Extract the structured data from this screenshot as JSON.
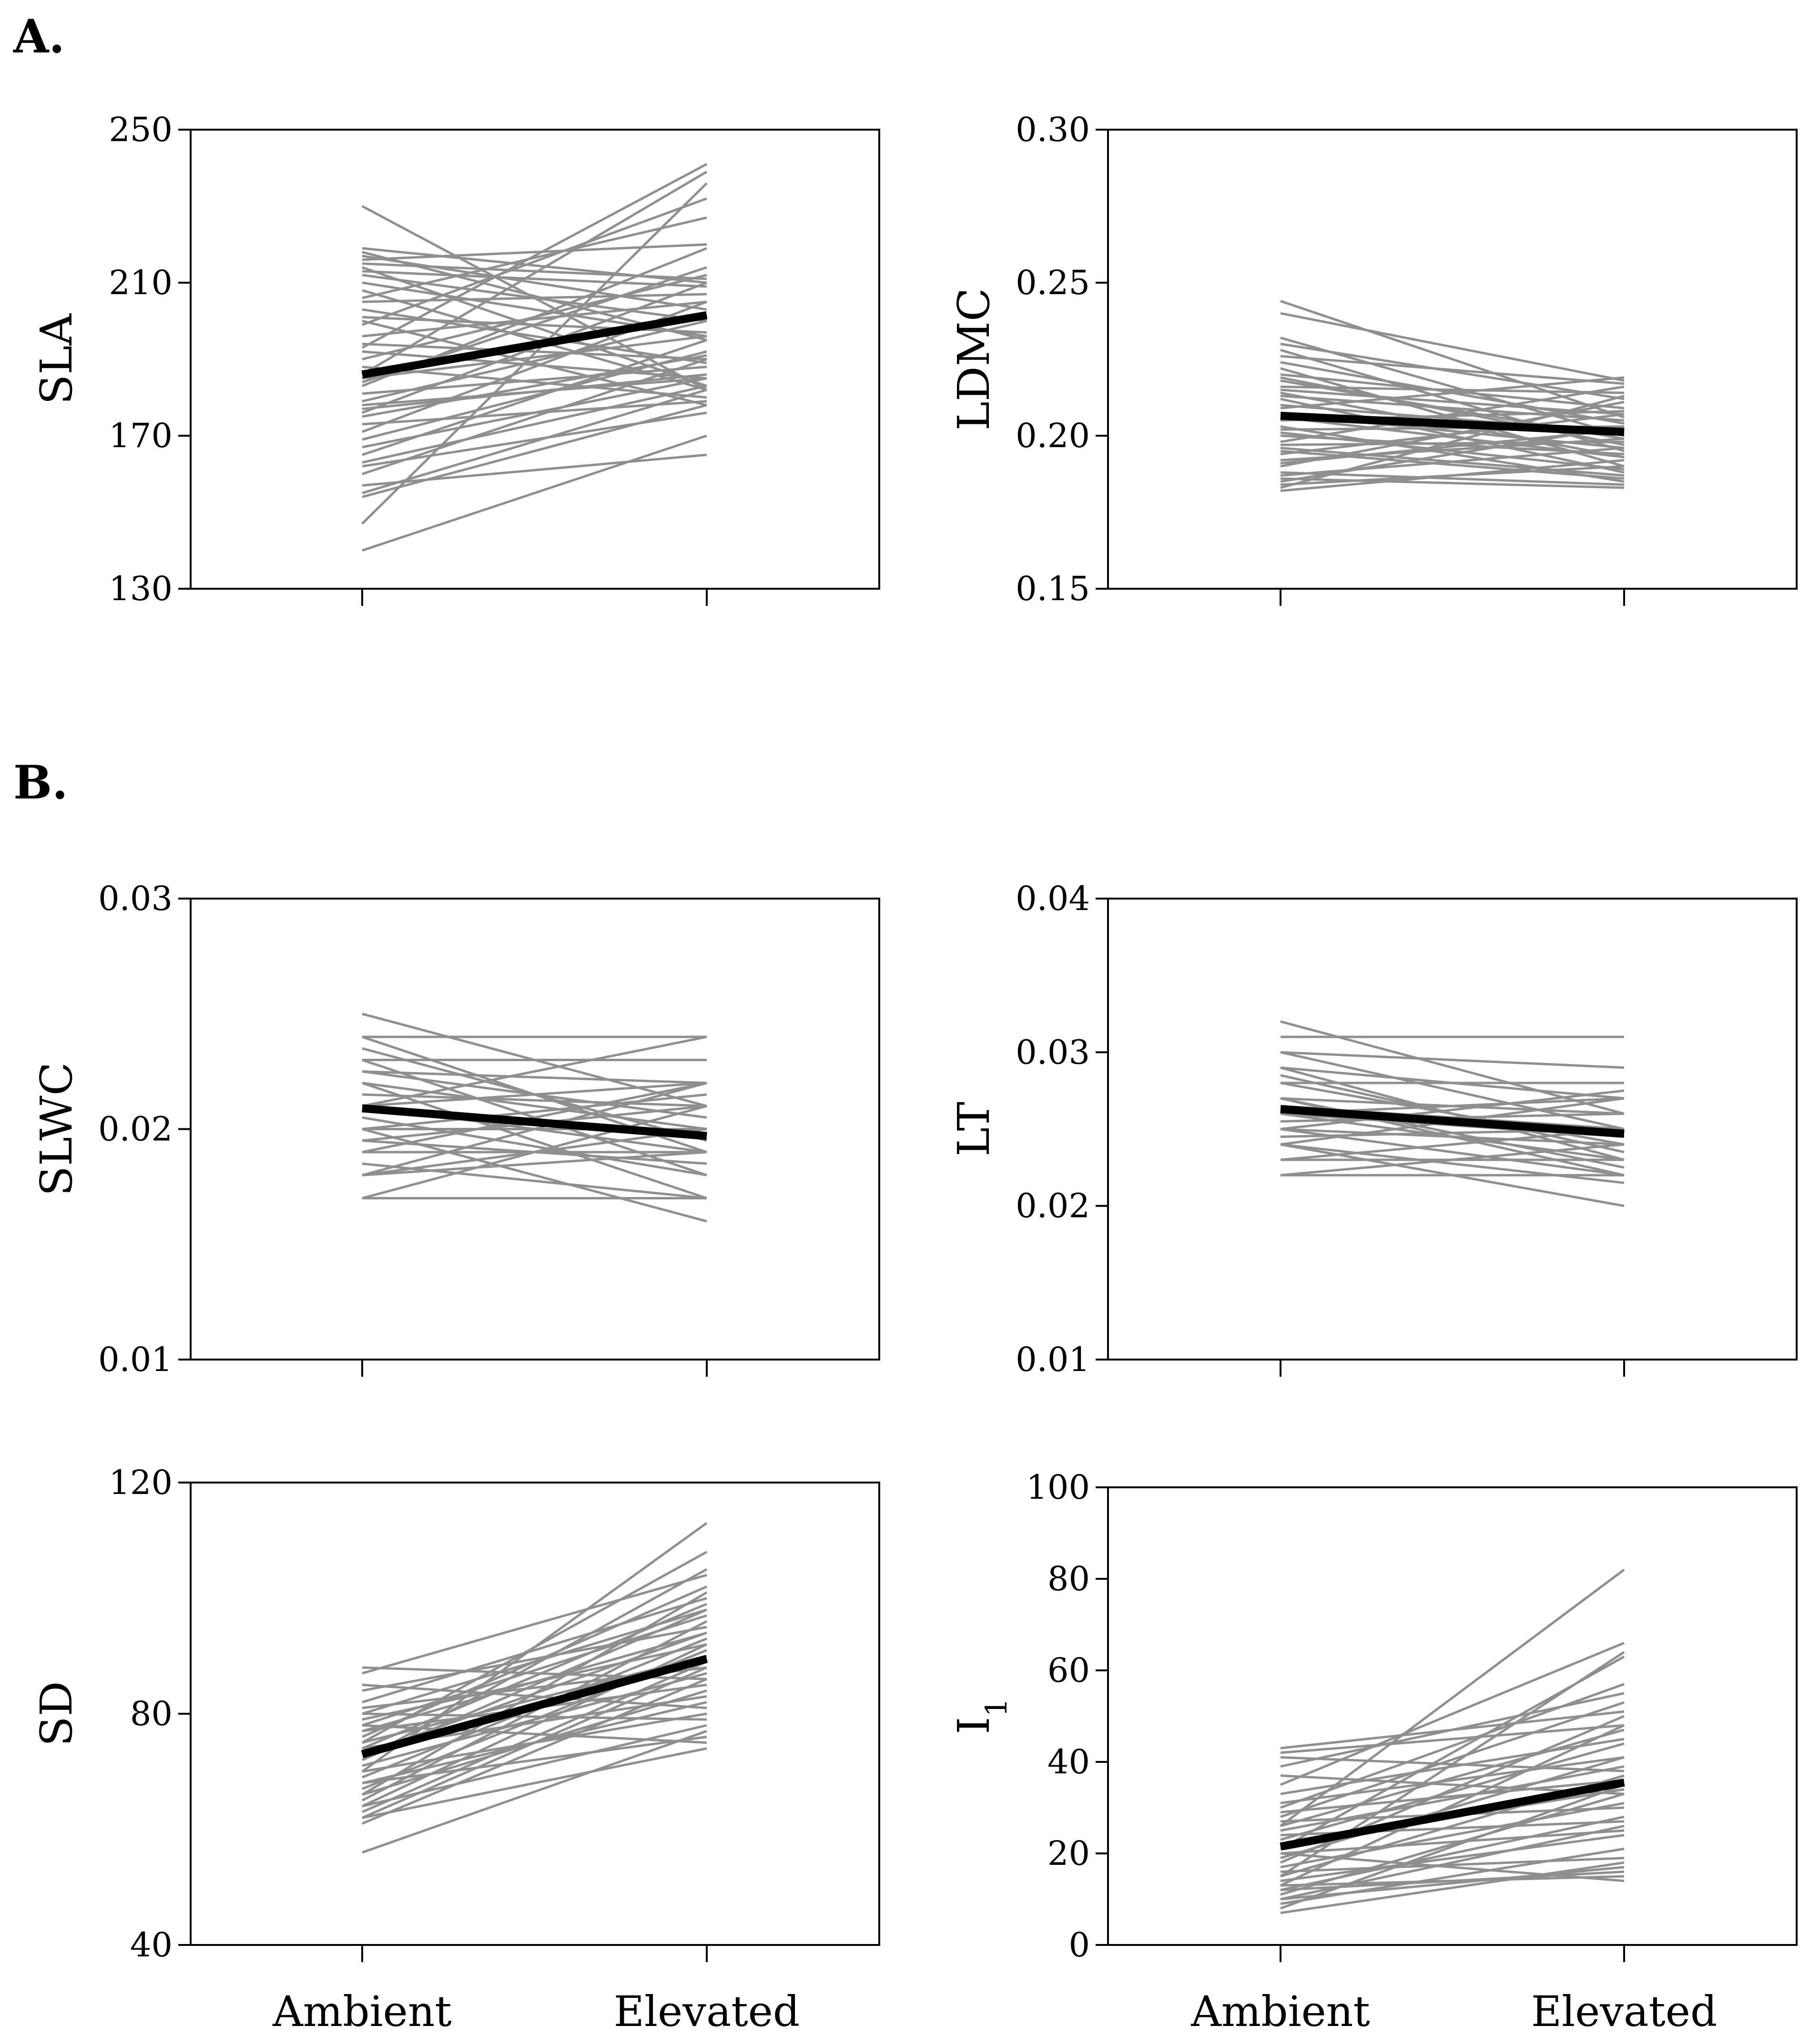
{
  "panel_labels": [
    "A.",
    "B."
  ],
  "x_categories": [
    "Ambient",
    "Elevated"
  ],
  "colors": {
    "individual": "#8f8f8f",
    "mean": "#000000",
    "axis": "#000000"
  },
  "chart_data": [
    {
      "type": "line",
      "id": "sla",
      "group": "A.",
      "ylabel": "SLA",
      "ylim": [
        130,
        250
      ],
      "yticks": [
        "130",
        "170",
        "210",
        "250"
      ],
      "categories": [
        "Ambient",
        "Elevated"
      ],
      "mean": {
        "name": "mean",
        "values": [
          186,
          201.5
        ]
      },
      "series": [
        [
          230,
          182
        ],
        [
          219,
          210
        ],
        [
          218,
          195
        ],
        [
          217,
          203
        ],
        [
          216,
          220
        ],
        [
          215,
          211
        ],
        [
          214,
          183
        ],
        [
          213,
          209
        ],
        [
          212,
          200
        ],
        [
          210,
          196
        ],
        [
          208,
          182
        ],
        [
          206,
          227
        ],
        [
          205,
          207
        ],
        [
          203,
          189
        ],
        [
          201,
          197
        ],
        [
          199,
          232
        ],
        [
          196,
          205
        ],
        [
          194,
          190
        ],
        [
          192,
          185
        ],
        [
          190,
          212
        ],
        [
          188,
          180
        ],
        [
          185,
          196
        ],
        [
          183,
          219
        ],
        [
          181,
          188
        ],
        [
          179,
          200
        ],
        [
          177,
          186
        ],
        [
          175,
          191
        ],
        [
          173,
          179
        ],
        [
          171,
          205
        ],
        [
          169,
          192
        ],
        [
          167,
          185
        ],
        [
          165,
          195
        ],
        [
          163,
          183
        ],
        [
          162,
          176
        ],
        [
          160,
          190
        ],
        [
          157,
          165
        ],
        [
          155,
          182
        ],
        [
          154,
          178
        ],
        [
          147,
          236
        ],
        [
          140,
          170
        ],
        [
          193,
          241
        ],
        [
          186,
          239
        ],
        [
          178,
          185
        ],
        [
          184,
          214
        ],
        [
          176,
          210
        ],
        [
          200,
          178
        ]
      ]
    },
    {
      "type": "line",
      "id": "ldmc",
      "group": "A.",
      "ylabel": "LDMC",
      "ylim": [
        0.15,
        0.3
      ],
      "yticks": [
        "0.15",
        "0.20",
        "0.25",
        "0.30"
      ],
      "categories": [
        "Ambient",
        "Elevated"
      ],
      "mean": {
        "name": "mean",
        "values": [
          0.2065,
          0.2012
        ]
      },
      "series": [
        [
          0.244,
          0.206
        ],
        [
          0.24,
          0.218
        ],
        [
          0.232,
          0.2
        ],
        [
          0.23,
          0.212
        ],
        [
          0.228,
          0.195
        ],
        [
          0.226,
          0.217
        ],
        [
          0.224,
          0.204
        ],
        [
          0.222,
          0.19
        ],
        [
          0.22,
          0.209
        ],
        [
          0.218,
          0.199
        ],
        [
          0.216,
          0.214
        ],
        [
          0.214,
          0.193
        ],
        [
          0.213,
          0.205
        ],
        [
          0.212,
          0.188
        ],
        [
          0.21,
          0.201
        ],
        [
          0.209,
          0.219
        ],
        [
          0.207,
          0.196
        ],
        [
          0.205,
          0.208
        ],
        [
          0.203,
          0.185
        ],
        [
          0.202,
          0.203
        ],
        [
          0.2,
          0.194
        ],
        [
          0.198,
          0.216
        ],
        [
          0.197,
          0.198
        ],
        [
          0.195,
          0.186
        ],
        [
          0.194,
          0.207
        ],
        [
          0.192,
          0.199
        ],
        [
          0.19,
          0.211
        ],
        [
          0.188,
          0.184
        ],
        [
          0.187,
          0.196
        ],
        [
          0.185,
          0.203
        ],
        [
          0.184,
          0.19
        ],
        [
          0.183,
          0.213
        ],
        [
          0.182,
          0.192
        ],
        [
          0.186,
          0.183
        ],
        [
          0.191,
          0.202
        ],
        [
          0.196,
          0.187
        ],
        [
          0.201,
          0.189
        ],
        [
          0.206,
          0.193
        ],
        [
          0.215,
          0.207
        ],
        [
          0.219,
          0.197
        ]
      ]
    },
    {
      "type": "line",
      "id": "slwc",
      "group": "B.",
      "ylabel": "SLWC",
      "ylim": [
        0.01,
        0.03
      ],
      "yticks": [
        "0.01",
        "0.02",
        "0.03"
      ],
      "categories": [
        "Ambient",
        "Elevated"
      ],
      "mean": {
        "name": "mean",
        "values": [
          0.0209,
          0.0197
        ]
      },
      "series": [
        [
          0.025,
          0.021
        ],
        [
          0.024,
          0.024
        ],
        [
          0.024,
          0.019
        ],
        [
          0.023,
          0.023
        ],
        [
          0.023,
          0.018
        ],
        [
          0.0225,
          0.022
        ],
        [
          0.022,
          0.02
        ],
        [
          0.022,
          0.017
        ],
        [
          0.0215,
          0.021
        ],
        [
          0.021,
          0.019
        ],
        [
          0.021,
          0.022
        ],
        [
          0.0205,
          0.018
        ],
        [
          0.02,
          0.02
        ],
        [
          0.02,
          0.016
        ],
        [
          0.0195,
          0.021
        ],
        [
          0.019,
          0.019
        ],
        [
          0.019,
          0.022
        ],
        [
          0.0185,
          0.017
        ],
        [
          0.018,
          0.02
        ],
        [
          0.018,
          0.019
        ],
        [
          0.017,
          0.017
        ],
        [
          0.017,
          0.021
        ],
        [
          0.0225,
          0.0205
        ],
        [
          0.021,
          0.024
        ],
        [
          0.0195,
          0.0185
        ],
        [
          0.018,
          0.022
        ],
        [
          0.0235,
          0.0195
        ],
        [
          0.02,
          0.0215
        ]
      ]
    },
    {
      "type": "line",
      "id": "lt",
      "group": "B.",
      "ylabel": "LT",
      "ylim": [
        0.01,
        0.04
      ],
      "yticks": [
        "0.01",
        "0.02",
        "0.03",
        "0.04"
      ],
      "categories": [
        "Ambient",
        "Elevated"
      ],
      "mean": {
        "name": "mean",
        "values": [
          0.0263,
          0.0247
        ]
      },
      "series": [
        [
          0.032,
          0.026
        ],
        [
          0.031,
          0.031
        ],
        [
          0.03,
          0.029
        ],
        [
          0.03,
          0.025
        ],
        [
          0.029,
          0.027
        ],
        [
          0.029,
          0.023
        ],
        [
          0.028,
          0.028
        ],
        [
          0.028,
          0.024
        ],
        [
          0.027,
          0.026
        ],
        [
          0.027,
          0.022
        ],
        [
          0.0265,
          0.025
        ],
        [
          0.026,
          0.027
        ],
        [
          0.026,
          0.023
        ],
        [
          0.0255,
          0.026
        ],
        [
          0.025,
          0.024
        ],
        [
          0.025,
          0.022
        ],
        [
          0.0245,
          0.025
        ],
        [
          0.024,
          0.02
        ],
        [
          0.024,
          0.027
        ],
        [
          0.023,
          0.023
        ],
        [
          0.023,
          0.025
        ],
        [
          0.022,
          0.022
        ],
        [
          0.022,
          0.024
        ],
        [
          0.027,
          0.0225
        ],
        [
          0.026,
          0.0245
        ],
        [
          0.0285,
          0.0235
        ],
        [
          0.025,
          0.0275
        ],
        [
          0.024,
          0.0215
        ]
      ]
    },
    {
      "type": "line",
      "id": "sd",
      "group": "B.",
      "ylabel": "SD",
      "ylim": [
        40,
        120
      ],
      "yticks": [
        "40",
        "80",
        "120"
      ],
      "categories": [
        "Ambient",
        "Elevated"
      ],
      "mean": {
        "name": "mean",
        "values": [
          73,
          89.5
        ]
      },
      "series": [
        [
          88,
          86
        ],
        [
          87,
          104
        ],
        [
          85,
          81
        ],
        [
          84,
          95
        ],
        [
          82,
          100
        ],
        [
          81,
          88
        ],
        [
          80,
          79
        ],
        [
          79,
          92
        ],
        [
          78,
          97
        ],
        [
          77,
          85
        ],
        [
          76,
          102
        ],
        [
          75,
          90
        ],
        [
          74,
          83
        ],
        [
          73,
          94
        ],
        [
          72,
          98
        ],
        [
          71,
          87
        ],
        [
          70,
          80
        ],
        [
          69,
          93
        ],
        [
          68,
          76
        ],
        [
          67,
          91
        ],
        [
          66,
          84
        ],
        [
          65,
          96
        ],
        [
          64,
          78
        ],
        [
          63,
          89
        ],
        [
          62,
          74
        ],
        [
          61,
          86
        ],
        [
          56,
          77
        ],
        [
          75,
          108
        ],
        [
          70,
          113
        ],
        [
          66,
          101
        ],
        [
          78,
          75
        ],
        [
          74,
          99
        ],
        [
          68,
          82
        ],
        [
          72,
          105
        ],
        [
          64,
          92
        ],
        [
          80,
          98
        ],
        [
          62,
          88
        ],
        [
          77,
          94
        ]
      ]
    },
    {
      "type": "line",
      "id": "i1",
      "group": "B.",
      "ylabel": "I1",
      "ylim": [
        0,
        100
      ],
      "yticks": [
        "0",
        "20",
        "40",
        "60",
        "80",
        "100"
      ],
      "categories": [
        "Ambient",
        "Elevated"
      ],
      "mean": {
        "name": "mean",
        "values": [
          21.5,
          35.5
        ]
      },
      "series": [
        [
          43,
          51
        ],
        [
          42,
          48
        ],
        [
          41,
          38
        ],
        [
          39,
          55
        ],
        [
          37,
          33
        ],
        [
          35,
          66
        ],
        [
          33,
          45
        ],
        [
          31,
          41
        ],
        [
          29,
          36
        ],
        [
          28,
          53
        ],
        [
          27,
          30
        ],
        [
          26,
          47
        ],
        [
          25,
          39
        ],
        [
          24,
          27
        ],
        [
          23,
          44
        ],
        [
          22,
          34
        ],
        [
          21,
          63
        ],
        [
          20,
          25
        ],
        [
          19,
          41
        ],
        [
          18,
          50
        ],
        [
          17,
          31
        ],
        [
          16,
          19
        ],
        [
          15,
          37
        ],
        [
          14,
          24
        ],
        [
          13,
          48
        ],
        [
          13,
          15
        ],
        [
          12,
          28
        ],
        [
          12,
          16
        ],
        [
          11,
          33
        ],
        [
          10,
          17
        ],
        [
          9,
          21
        ],
        [
          8,
          35
        ],
        [
          7,
          18
        ],
        [
          26,
          82
        ],
        [
          15,
          64
        ],
        [
          20,
          14
        ],
        [
          30,
          57
        ],
        [
          10,
          26
        ]
      ]
    }
  ]
}
